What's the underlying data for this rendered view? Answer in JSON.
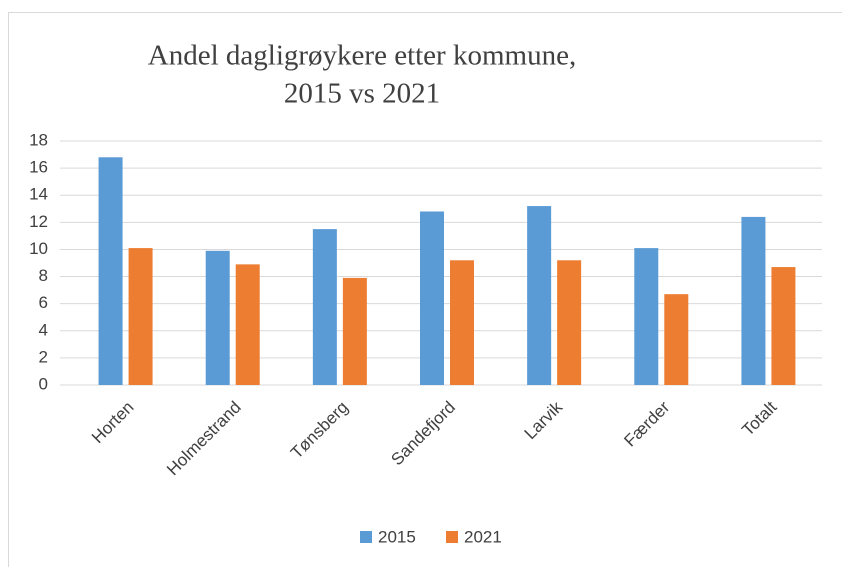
{
  "chart_data": {
    "type": "bar",
    "title": [
      "Andel dagligrøykere etter kommune,",
      "2015 vs 2021"
    ],
    "categories": [
      "Horten",
      "Holmestrand",
      "Tønsberg",
      "Sandefjord",
      "Larvik",
      "Færder",
      "Totalt"
    ],
    "series": [
      {
        "name": "2015",
        "color": "#5b9bd5",
        "values": [
          16.8,
          9.9,
          11.5,
          12.8,
          13.2,
          10.1,
          12.4
        ]
      },
      {
        "name": "2021",
        "color": "#ed7d31",
        "values": [
          10.1,
          8.9,
          7.9,
          9.2,
          9.2,
          6.7,
          8.7
        ]
      }
    ],
    "ylim": [
      0,
      18
    ],
    "yticks": [
      0,
      2,
      4,
      6,
      8,
      10,
      12,
      14,
      16,
      18
    ],
    "grid": true,
    "legend": "bottom"
  }
}
